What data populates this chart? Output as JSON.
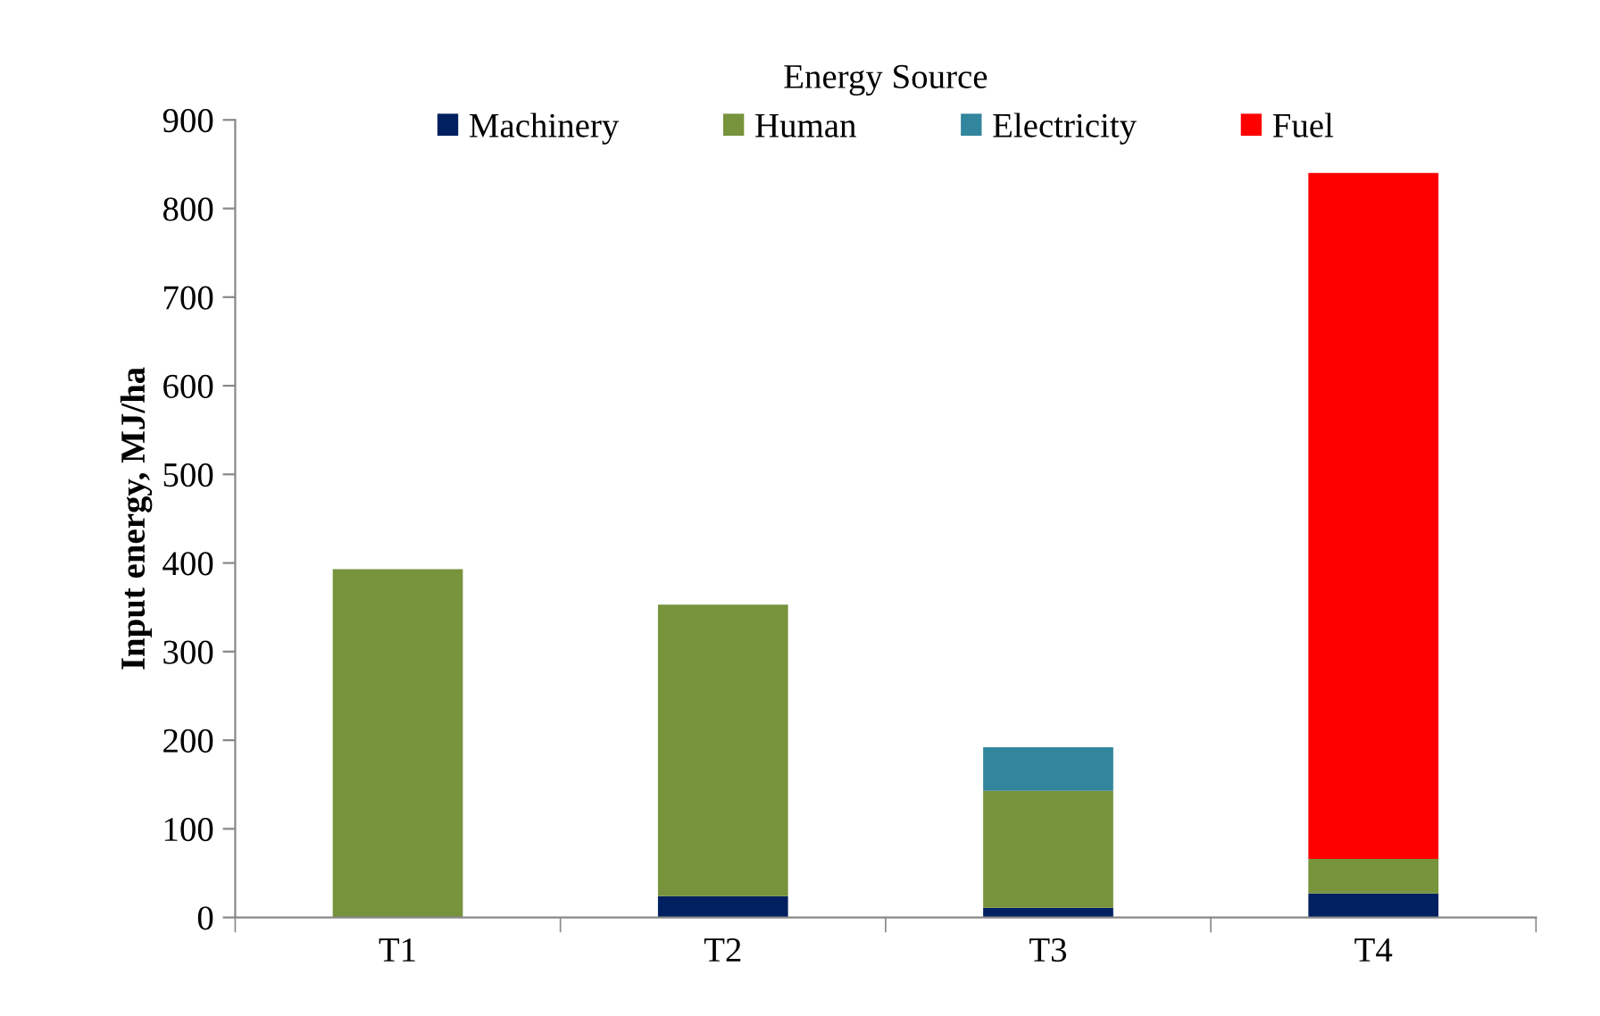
{
  "chart_data": {
    "type": "bar",
    "stacked": true,
    "ylabel": "Input energy, MJ/ha",
    "legend_title": "Energy Source",
    "legend": "top",
    "categories": [
      "T1",
      "T2",
      "T3",
      "T4"
    ],
    "series": [
      {
        "name": "Machinery",
        "color": "#002060",
        "values": [
          0,
          24,
          11,
          27
        ]
      },
      {
        "name": "Human",
        "color": "#77933c",
        "values": [
          393,
          329,
          132,
          39
        ]
      },
      {
        "name": "Electricity",
        "color": "#31859c",
        "values": [
          0,
          0,
          49,
          0
        ]
      },
      {
        "name": "Fuel",
        "color": "#ff0000",
        "values": [
          0,
          0,
          0,
          774
        ]
      }
    ],
    "ylim": [
      0,
      900
    ],
    "yticks": [
      0,
      100,
      200,
      300,
      400,
      500,
      600,
      700,
      800,
      900
    ],
    "grid": false
  }
}
